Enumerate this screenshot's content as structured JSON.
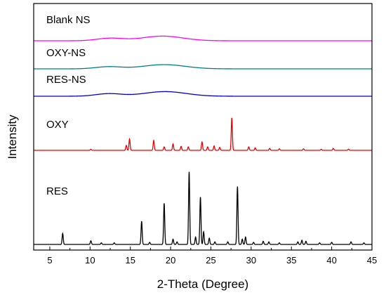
{
  "chart_data": {
    "type": "line",
    "xlabel": "2-Theta (Degree)",
    "ylabel": "Intensity",
    "xlim": [
      3,
      45
    ],
    "x_ticks": [
      "5",
      "10",
      "15",
      "20",
      "25",
      "30",
      "35",
      "40",
      "45"
    ],
    "x_tick_values": [
      5,
      10,
      15,
      20,
      25,
      30,
      35,
      40,
      45
    ],
    "grid": false,
    "legend": "none; series labels placed above each trace",
    "series": [
      {
        "name": "Blank NS",
        "color": "#ff00ff",
        "baseline": 2.3,
        "broad_humps": [
          [
            12.5,
            0.3,
            1.6
          ],
          [
            19.0,
            0.55,
            2.5
          ]
        ],
        "peaks": []
      },
      {
        "name": "OXY-NS",
        "color": "#008080",
        "baseline": 2.2,
        "broad_humps": [
          [
            12.3,
            0.25,
            1.6
          ],
          [
            19.2,
            0.5,
            2.6
          ]
        ],
        "peaks": []
      },
      {
        "name": "RES-NS",
        "color": "#0000cc",
        "baseline": 2.2,
        "broad_humps": [
          [
            12.3,
            0.3,
            1.6
          ],
          [
            19.3,
            0.55,
            2.6
          ]
        ],
        "peaks": []
      },
      {
        "name": "OXY",
        "color": "#ee0000",
        "baseline": 2.0,
        "broad_humps": [],
        "peaks": [
          [
            10.1,
            0.1
          ],
          [
            14.5,
            0.5
          ],
          [
            14.9,
            1.15
          ],
          [
            17.9,
            1.0
          ],
          [
            19.2,
            0.35
          ],
          [
            20.3,
            0.65
          ],
          [
            21.3,
            0.4
          ],
          [
            22.2,
            0.35
          ],
          [
            23.9,
            0.85
          ],
          [
            24.6,
            0.35
          ],
          [
            25.4,
            0.45
          ],
          [
            26.1,
            0.3
          ],
          [
            27.6,
            3.3
          ],
          [
            29.7,
            0.35
          ],
          [
            30.5,
            0.25
          ],
          [
            32.3,
            0.2
          ],
          [
            33.5,
            0.15
          ],
          [
            36.5,
            0.15
          ],
          [
            38.7,
            0.1
          ],
          [
            40.2,
            0.2
          ],
          [
            42.1,
            0.12
          ]
        ]
      },
      {
        "name": "RES",
        "color": "#000000",
        "baseline": 2.0,
        "broad_humps": [],
        "peaks": [
          [
            6.6,
            1.05
          ],
          [
            10.1,
            0.35
          ],
          [
            11.4,
            0.15
          ],
          [
            13.0,
            0.15
          ],
          [
            16.4,
            2.2
          ],
          [
            17.4,
            0.2
          ],
          [
            19.2,
            3.9
          ],
          [
            20.3,
            0.5
          ],
          [
            20.8,
            0.25
          ],
          [
            22.3,
            6.9
          ],
          [
            23.1,
            0.7
          ],
          [
            23.7,
            4.5
          ],
          [
            24.1,
            1.2
          ],
          [
            24.8,
            0.6
          ],
          [
            25.5,
            0.25
          ],
          [
            27.1,
            0.25
          ],
          [
            28.3,
            5.5
          ],
          [
            28.9,
            0.5
          ],
          [
            29.3,
            0.7
          ],
          [
            30.3,
            0.2
          ],
          [
            31.5,
            0.3
          ],
          [
            32.2,
            0.25
          ],
          [
            33.5,
            0.15
          ],
          [
            35.8,
            0.25
          ],
          [
            36.3,
            0.4
          ],
          [
            36.8,
            0.3
          ],
          [
            38.5,
            0.15
          ],
          [
            40.0,
            0.2
          ],
          [
            42.4,
            0.25
          ],
          [
            44.0,
            0.15
          ]
        ]
      }
    ]
  }
}
